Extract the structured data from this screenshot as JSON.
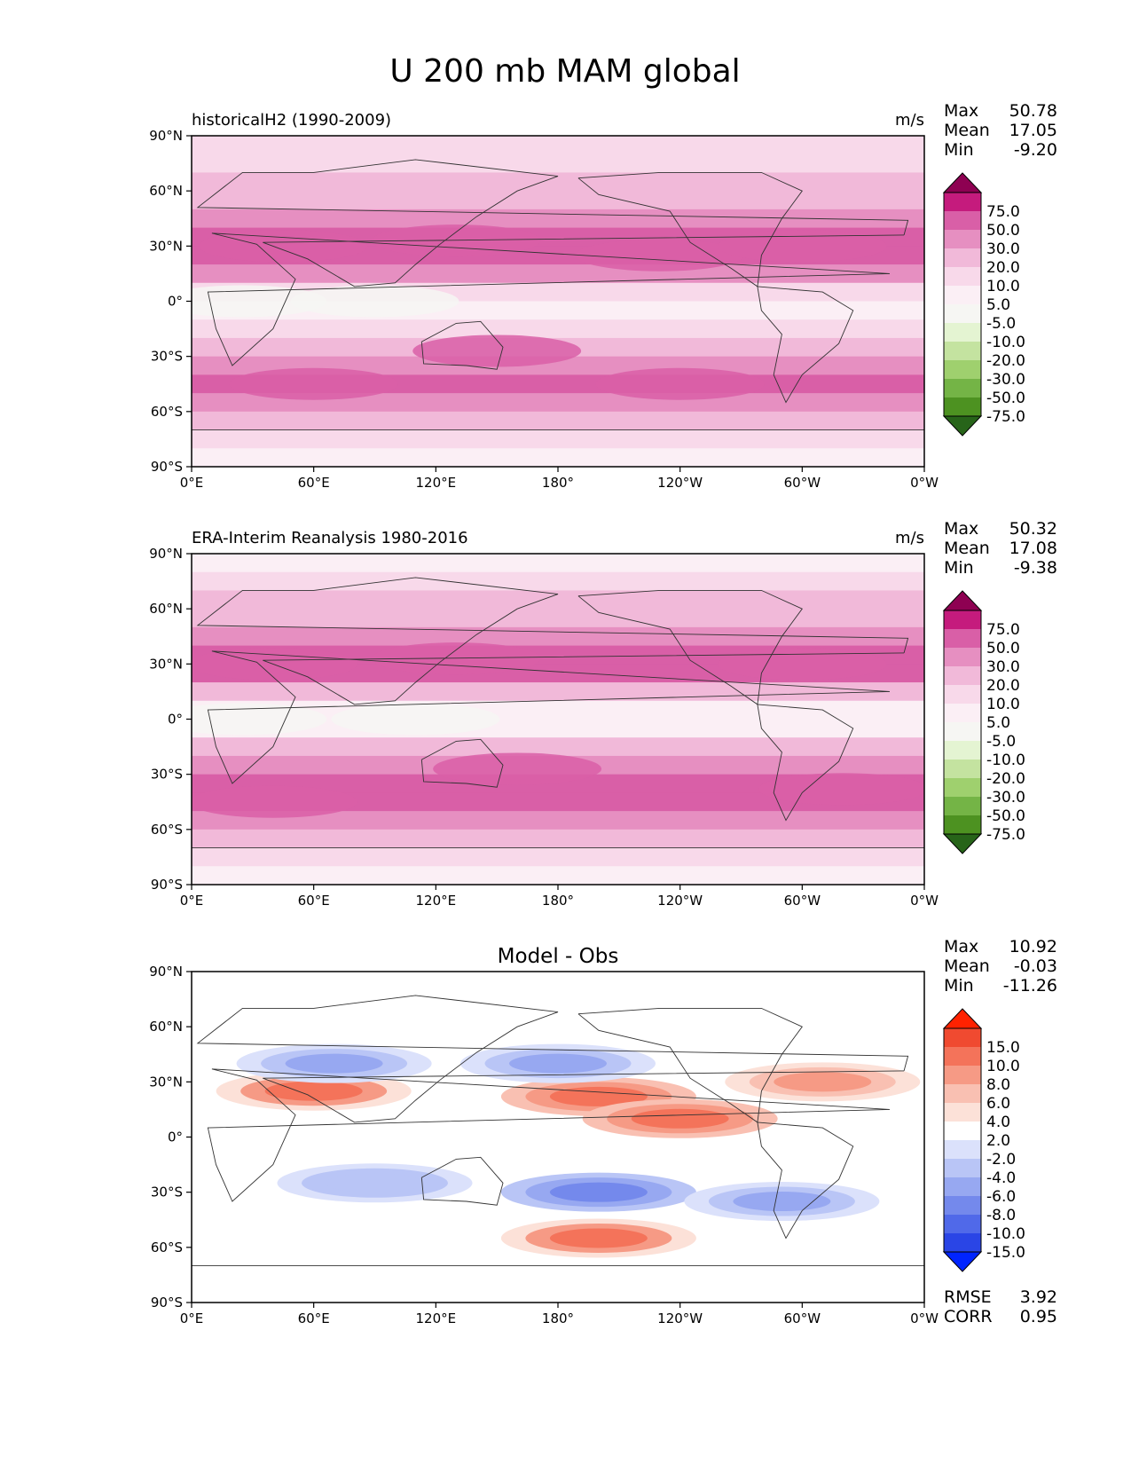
{
  "title": "U 200 mb MAM global",
  "chart_data": [
    {
      "type": "heatmap",
      "id": "model",
      "title": "historicalH2 (1990-2009)",
      "units": "m/s",
      "stats": [
        {
          "label": "Max",
          "value": "50.78"
        },
        {
          "label": "Mean",
          "value": "17.05"
        },
        {
          "label": "Min",
          "value": "-9.20"
        }
      ],
      "xlabel": "",
      "ylabel": "",
      "x_ticks": [
        "0°E",
        "60°E",
        "120°E",
        "180°",
        "120°W",
        "60°W",
        "0°W"
      ],
      "y_ticks": [
        "90°N",
        "60°N",
        "30°N",
        "0°",
        "30°S",
        "60°S",
        "90°S"
      ],
      "x_range": [
        0,
        360
      ],
      "y_range": [
        -90,
        90
      ],
      "colorbar": {
        "levels": [
          "75.0",
          "50.0",
          "30.0",
          "20.0",
          "10.0",
          "5.0",
          "-5.0",
          "-10.0",
          "-20.0",
          "-30.0",
          "-50.0",
          "-75.0"
        ],
        "colors": [
          "#8e0152",
          "#c51b7d",
          "#d95fa7",
          "#e68fc1",
          "#f1b9d9",
          "#f8d9ea",
          "#fbeff5",
          "#f6f6f3",
          "#e4f4d2",
          "#c4e3a0",
          "#9fd06e",
          "#74b446",
          "#4d9221",
          "#276419"
        ],
        "extend": "both"
      },
      "zonal_profile": {
        "lat": [
          85,
          75,
          65,
          55,
          45,
          35,
          25,
          15,
          5,
          -5,
          -15,
          -25,
          -35,
          -45,
          -55,
          -65,
          -75,
          -85
        ],
        "u": [
          6,
          9,
          12,
          17,
          24,
          31,
          34,
          20,
          5,
          3,
          9,
          19,
          27,
          33,
          27,
          16,
          8,
          4
        ]
      }
    },
    {
      "type": "heatmap",
      "id": "obs",
      "title": "ERA-Interim Reanalysis 1980-2016",
      "units": "m/s",
      "stats": [
        {
          "label": "Max",
          "value": "50.32"
        },
        {
          "label": "Mean",
          "value": "17.08"
        },
        {
          "label": "Min",
          "value": "-9.38"
        }
      ],
      "x_ticks": [
        "0°E",
        "60°E",
        "120°E",
        "180°",
        "120°W",
        "60°W",
        "0°W"
      ],
      "y_ticks": [
        "90°N",
        "60°N",
        "30°N",
        "0°",
        "30°S",
        "60°S",
        "90°S"
      ],
      "x_range": [
        0,
        360
      ],
      "y_range": [
        -90,
        90
      ],
      "colorbar": {
        "levels": [
          "75.0",
          "50.0",
          "30.0",
          "20.0",
          "10.0",
          "5.0",
          "-5.0",
          "-10.0",
          "-20.0",
          "-30.0",
          "-50.0",
          "-75.0"
        ],
        "colors": [
          "#8e0152",
          "#c51b7d",
          "#d95fa7",
          "#e68fc1",
          "#f1b9d9",
          "#f8d9ea",
          "#fbeff5",
          "#f6f6f3",
          "#e4f4d2",
          "#c4e3a0",
          "#9fd06e",
          "#74b446",
          "#4d9221",
          "#276419"
        ],
        "extend": "both"
      },
      "zonal_profile": {
        "lat": [
          85,
          75,
          65,
          55,
          45,
          35,
          25,
          15,
          5,
          -5,
          -15,
          -25,
          -35,
          -45,
          -55,
          -65,
          -75,
          -85
        ],
        "u": [
          4,
          8,
          13,
          18,
          25,
          32,
          30,
          18,
          4,
          3,
          10,
          22,
          30,
          32,
          26,
          14,
          6,
          3
        ]
      }
    },
    {
      "type": "heatmap",
      "id": "diff",
      "title": "Model - Obs",
      "units": "",
      "stats": [
        {
          "label": "Max",
          "value": "10.92"
        },
        {
          "label": "Mean",
          "value": "-0.03"
        },
        {
          "label": "Min",
          "value": "-11.26"
        }
      ],
      "extra_stats": [
        {
          "label": "RMSE",
          "value": "3.92"
        },
        {
          "label": "CORR",
          "value": "0.95"
        }
      ],
      "x_ticks": [
        "0°E",
        "60°E",
        "120°E",
        "180°",
        "120°W",
        "60°W",
        "0°W"
      ],
      "y_ticks": [
        "90°N",
        "60°N",
        "30°N",
        "0°",
        "30°S",
        "60°S",
        "90°S"
      ],
      "x_range": [
        0,
        360
      ],
      "y_range": [
        -90,
        90
      ],
      "colorbar": {
        "levels": [
          "15.0",
          "10.0",
          "8.0",
          "6.0",
          "4.0",
          "2.0",
          "-2.0",
          "-4.0",
          "-6.0",
          "-8.0",
          "-10.0",
          "-15.0"
        ],
        "colors": [
          "#ff2200",
          "#f04a30",
          "#f4735a",
          "#f69a85",
          "#f9c0b2",
          "#fce1d8",
          "#ffffff",
          "#dbe1fb",
          "#b9c5f6",
          "#97a8f1",
          "#7489ec",
          "#5069e9",
          "#2a45e6",
          "#0024ff"
        ],
        "extend": "both"
      },
      "anomalies": [
        {
          "lon": 60,
          "lat": 25,
          "value": 8
        },
        {
          "lon": 200,
          "lat": 22,
          "value": 9
        },
        {
          "lon": 240,
          "lat": 10,
          "value": 9
        },
        {
          "lon": 70,
          "lat": 40,
          "value": -8
        },
        {
          "lon": 180,
          "lat": 40,
          "value": -8
        },
        {
          "lon": 200,
          "lat": -30,
          "value": -10
        },
        {
          "lon": 290,
          "lat": -35,
          "value": -7
        },
        {
          "lon": 200,
          "lat": -55,
          "value": 8
        },
        {
          "lon": 90,
          "lat": -25,
          "value": -6
        },
        {
          "lon": 310,
          "lat": 30,
          "value": 6
        }
      ]
    }
  ]
}
